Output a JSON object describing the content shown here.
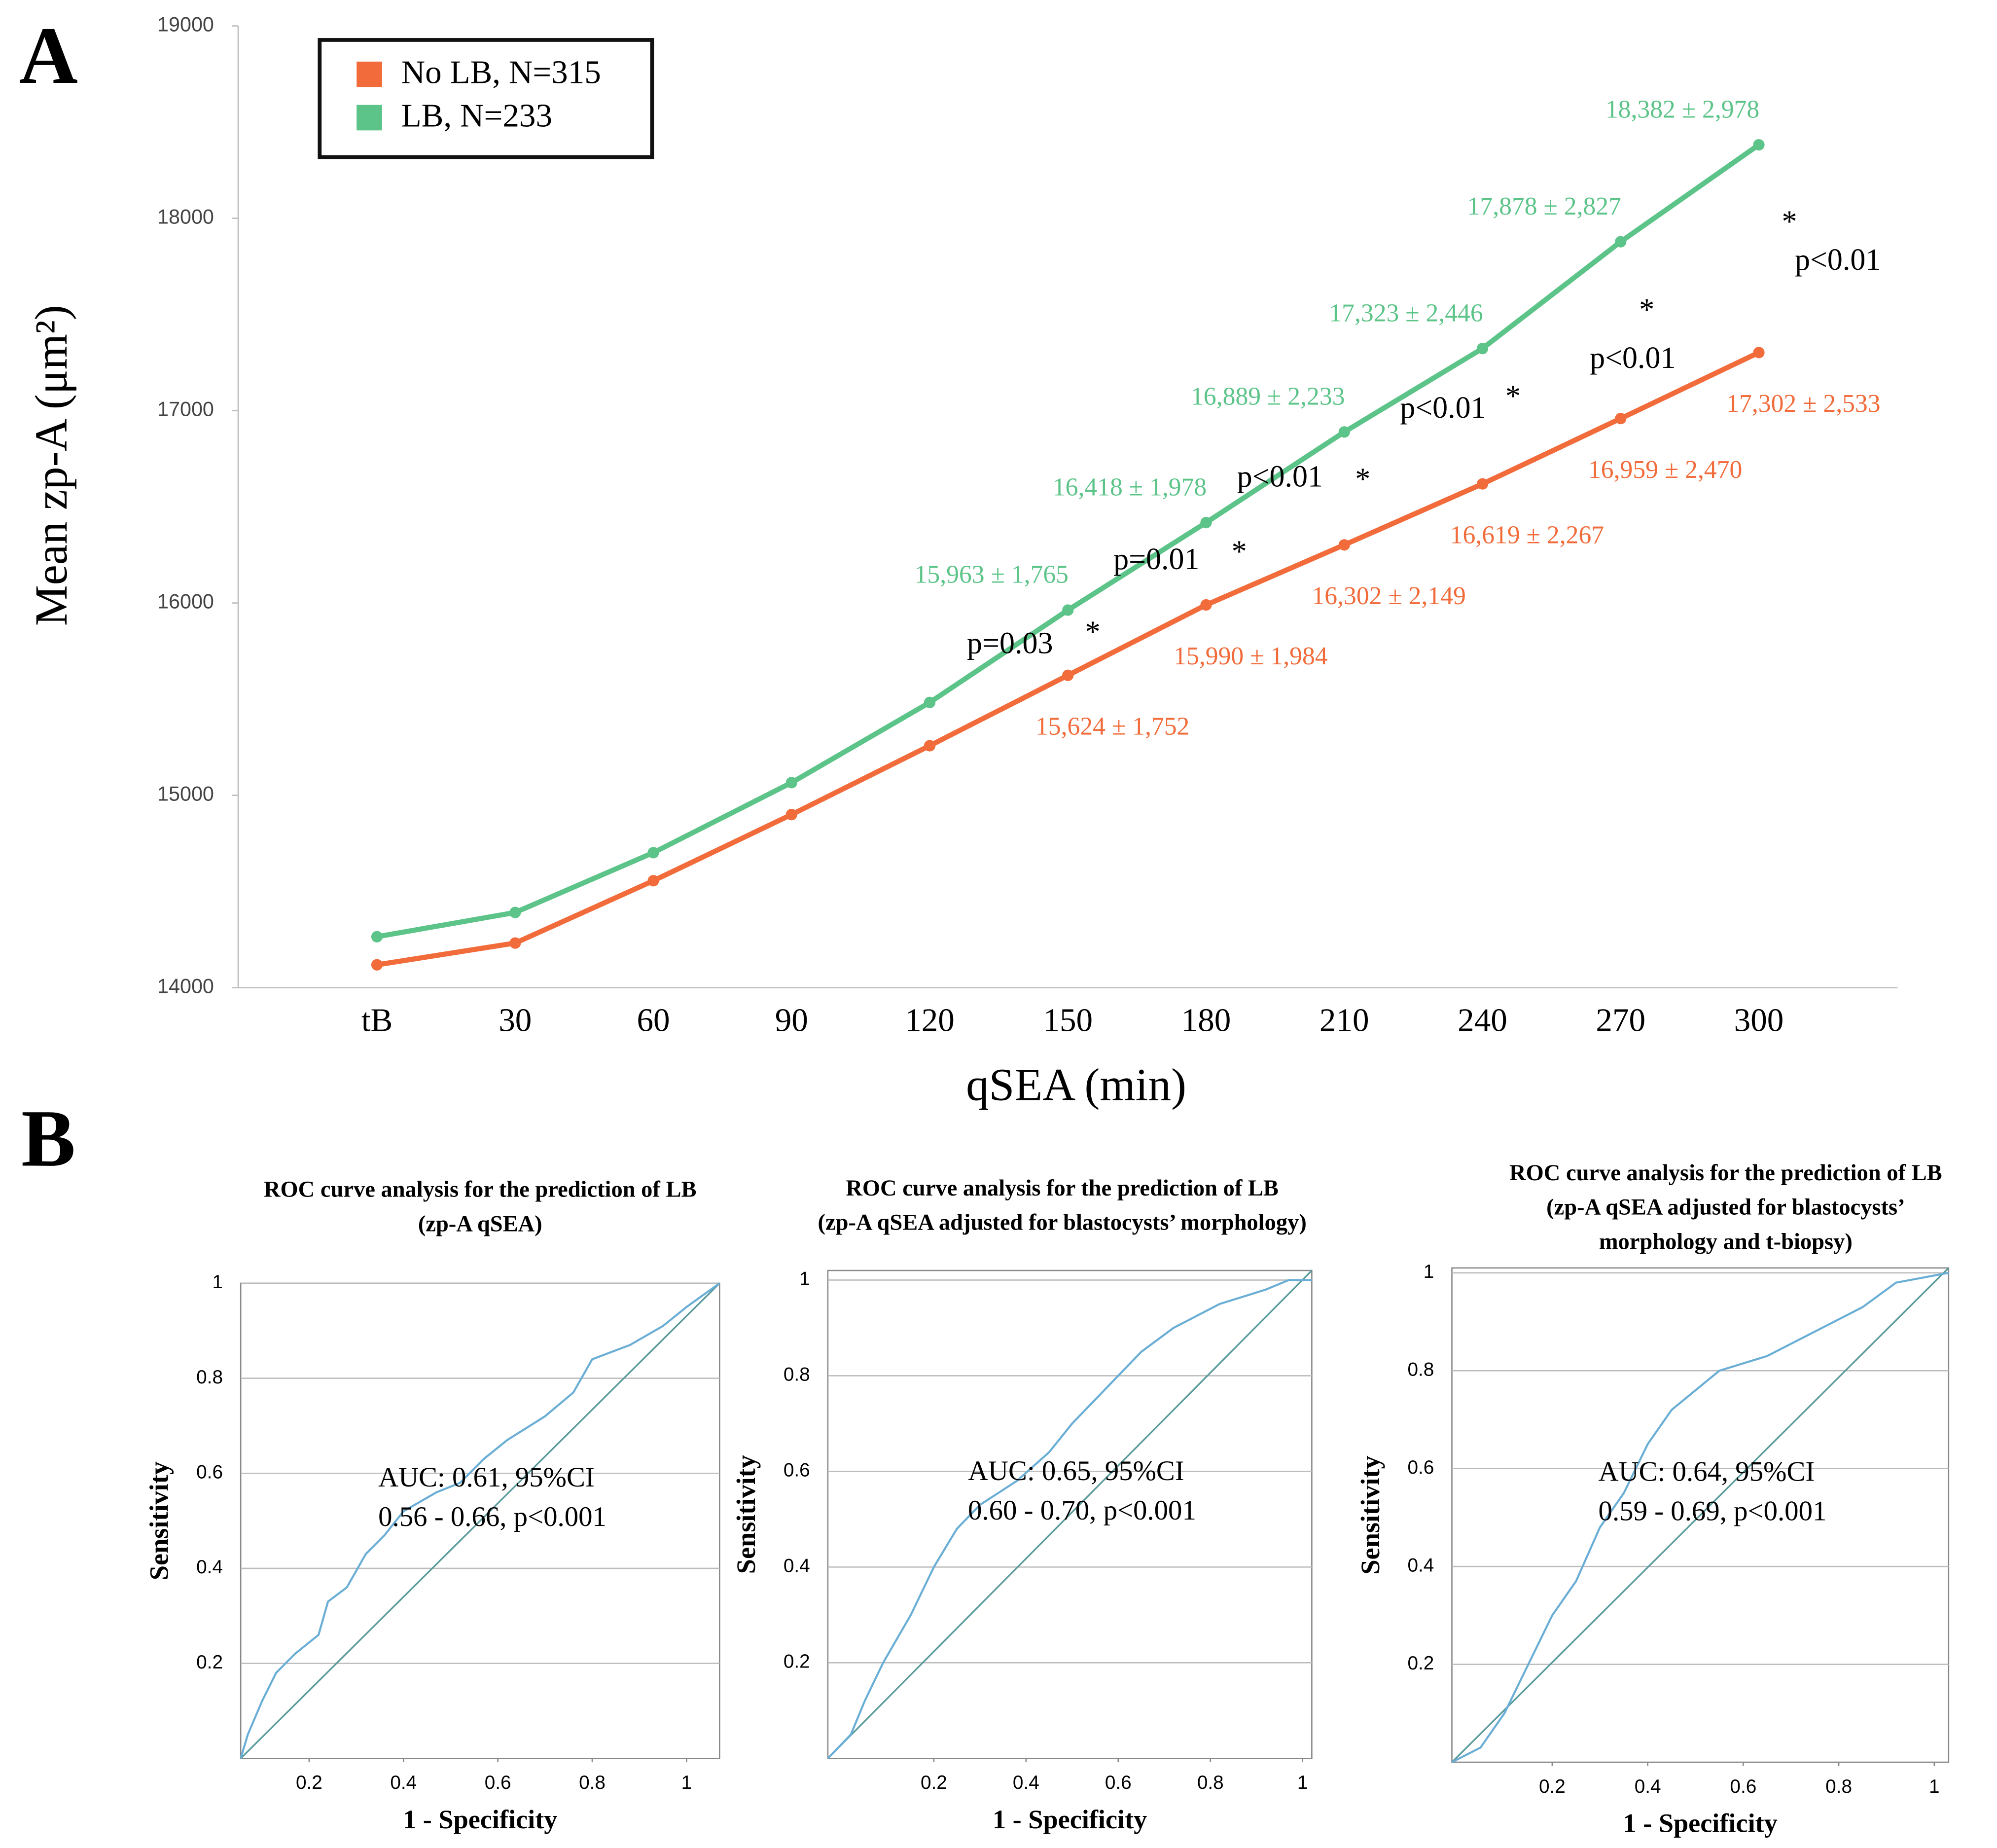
{
  "panel_labels": [
    "A",
    "B"
  ],
  "chart_data": [
    {
      "type": "line",
      "ylabel": "Mean zp-A (μm²)",
      "xlabel": "qSEA (min)",
      "categories": [
        "tB",
        "30",
        "60",
        "90",
        "120",
        "150",
        "180",
        "210",
        "240",
        "270",
        "300"
      ],
      "ylim": [
        14000,
        19000
      ],
      "yticks": [
        14000,
        15000,
        16000,
        17000,
        18000,
        19000
      ],
      "legend": "top-left",
      "series": [
        {
          "name": "No LB, N=315",
          "color": "#f26b3a",
          "values": [
            14119,
            14232,
            14556,
            14900,
            15258,
            15624,
            15990,
            16302,
            16619,
            16959,
            17302
          ],
          "value_labels": [
            null,
            null,
            null,
            null,
            null,
            "15,624 ± 1,752",
            "15,990 ± 1,984",
            "16,302 ± 2,149",
            "16,619 ± 2,267",
            "16,959 ± 2,470",
            "17,302 ± 2,533"
          ]
        },
        {
          "name": "LB, N=233",
          "color": "#5cc488",
          "values": [
            14265,
            14391,
            14702,
            15066,
            15483,
            15963,
            16418,
            16889,
            17323,
            17878,
            18382
          ],
          "value_labels": [
            null,
            null,
            null,
            null,
            null,
            "15,963 ± 1,765",
            "16,418 ± 1,978",
            "16,889 ± 2,233",
            "17,323 ± 2,446",
            "17,878 ± 2,827",
            "18,382 ± 2,978"
          ]
        }
      ],
      "annotations": [
        "p=0.03",
        "*",
        "p=0.01",
        "*",
        "p<0.01",
        "*",
        "p<0.01",
        "*",
        "p<0.01",
        "*",
        "p<0.01",
        "*"
      ]
    },
    {
      "type": "roc",
      "title": [
        "ROC curve analysis for the prediction of LB",
        "(zp-A qSEA)"
      ],
      "xlabel": "1 - Specificity",
      "ylabel": "Sensitivity",
      "xlim": [
        0.055,
        1.07
      ],
      "ylim": [
        0,
        1
      ],
      "xticks": [
        0.2,
        0.4,
        0.6,
        0.8,
        1
      ],
      "yticks": [
        0.2,
        0.4,
        0.6,
        0.8,
        1
      ],
      "color": "#6aaed6",
      "grid": true,
      "annotation": [
        "AUC: 0.61, 95%CI",
        "0.56 - 0.66, p<0.001"
      ],
      "x": [
        0.055,
        0.07,
        0.1,
        0.13,
        0.17,
        0.22,
        0.24,
        0.28,
        0.32,
        0.36,
        0.4,
        0.47,
        0.52,
        0.57,
        0.62,
        0.7,
        0.76,
        0.8,
        0.88,
        0.95,
        1.0,
        1.07
      ],
      "values": [
        0,
        0.05,
        0.12,
        0.18,
        0.22,
        0.26,
        0.33,
        0.36,
        0.43,
        0.47,
        0.52,
        0.56,
        0.58,
        0.63,
        0.67,
        0.72,
        0.77,
        0.84,
        0.87,
        0.91,
        0.95,
        1.0
      ]
    },
    {
      "type": "roc",
      "title": [
        "ROC curve analysis for the prediction of LB",
        "(zp-A qSEA adjusted for blastocysts’ morphology)"
      ],
      "xlabel": "1 - Specificity",
      "ylabel": "Sensitivity",
      "xlim": [
        -0.03,
        1.02
      ],
      "ylim": [
        0,
        1.02
      ],
      "xticks": [
        0.2,
        0.4,
        0.6,
        0.8,
        1
      ],
      "yticks": [
        0.2,
        0.4,
        0.6,
        0.8,
        1
      ],
      "color": "#6aaed6",
      "grid": true,
      "annotation": [
        "AUC: 0.65, 95%CI",
        "0.60 - 0.70, p<0.001"
      ],
      "x": [
        -0.03,
        0.02,
        0.05,
        0.09,
        0.15,
        0.2,
        0.25,
        0.3,
        0.38,
        0.45,
        0.5,
        0.55,
        0.6,
        0.65,
        0.72,
        0.82,
        0.92,
        0.97,
        1.02
      ],
      "values": [
        0,
        0.05,
        0.12,
        0.2,
        0.3,
        0.4,
        0.48,
        0.53,
        0.58,
        0.64,
        0.7,
        0.75,
        0.8,
        0.85,
        0.9,
        0.95,
        0.98,
        1.0,
        1.0
      ]
    },
    {
      "type": "roc",
      "title": [
        "ROC curve analysis for the prediction of LB",
        "(zp-A qSEA adjusted for blastocysts’",
        "morphology and t-biopsy)"
      ],
      "xlabel": "1 - Specificity",
      "ylabel": "Sensitivity",
      "xlim": [
        -0.01,
        1.03
      ],
      "ylim": [
        0,
        1.01
      ],
      "xticks": [
        0.2,
        0.4,
        0.6,
        0.8,
        1
      ],
      "yticks": [
        0.2,
        0.4,
        0.6,
        0.8,
        1
      ],
      "color": "#6aaed6",
      "grid": true,
      "annotation": [
        "AUC: 0.64, 95%CI",
        "0.59 - 0.69, p<0.001"
      ],
      "x": [
        -0.01,
        0.05,
        0.1,
        0.15,
        0.2,
        0.25,
        0.3,
        0.35,
        0.4,
        0.45,
        0.55,
        0.65,
        0.75,
        0.85,
        0.92,
        1.03
      ],
      "values": [
        0,
        0.03,
        0.1,
        0.2,
        0.3,
        0.37,
        0.48,
        0.55,
        0.65,
        0.72,
        0.8,
        0.83,
        0.88,
        0.93,
        0.98,
        1.0
      ]
    }
  ]
}
